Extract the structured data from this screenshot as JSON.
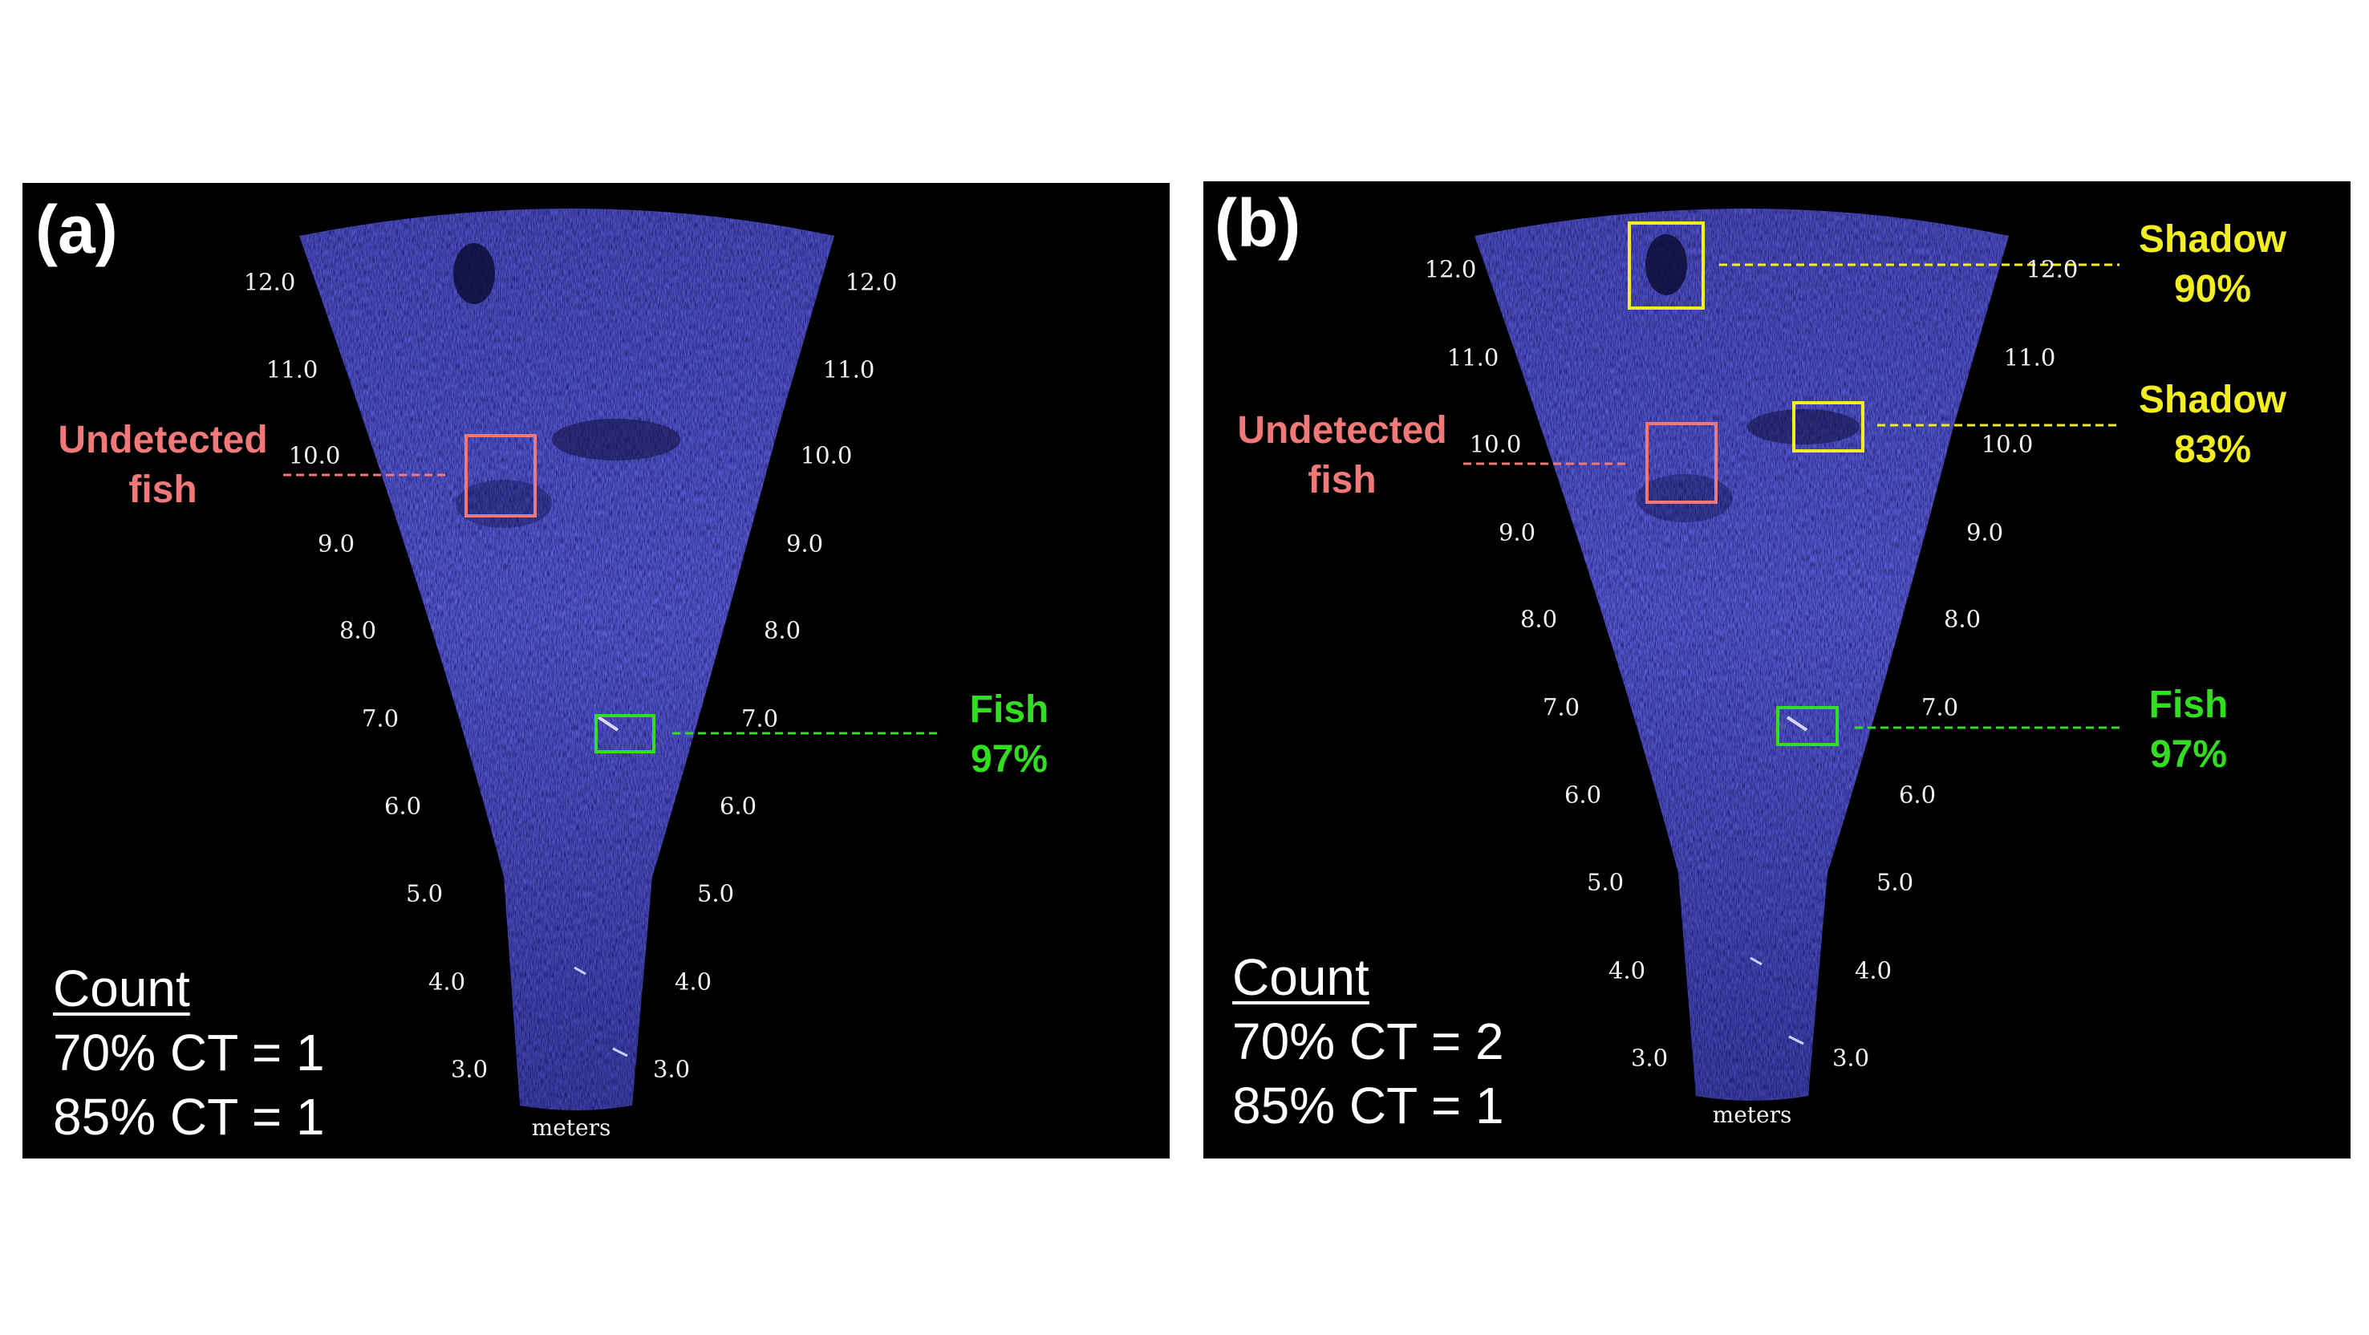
{
  "colors": {
    "sonar": "#5c5ed6",
    "undetected": "#f07878",
    "fish": "#33dd22",
    "shadow": "#f2ee22",
    "text": "#ffffff"
  },
  "panels": [
    {
      "letter": "(a)",
      "ticks": [
        "12.0",
        "11.0",
        "10.0",
        "9.0",
        "8.0",
        "7.0",
        "6.0",
        "5.0",
        "4.0",
        "3.0"
      ],
      "unit": "meters",
      "undetected": {
        "line1": "Undetected",
        "line2": "fish"
      },
      "fish": {
        "line1": "Fish",
        "line2": "97%"
      },
      "count": {
        "title": "Count",
        "row70": "70% CT = 1",
        "row85": "85% CT = 1"
      }
    },
    {
      "letter": "(b)",
      "ticks": [
        "12.0",
        "11.0",
        "10.0",
        "9.0",
        "8.0",
        "7.0",
        "6.0",
        "5.0",
        "4.0",
        "3.0"
      ],
      "unit": "meters",
      "undetected": {
        "line1": "Undetected",
        "line2": "fish"
      },
      "fish": {
        "line1": "Fish",
        "line2": "97%"
      },
      "shadow1": {
        "line1": "Shadow",
        "line2": "90%"
      },
      "shadow2": {
        "line1": "Shadow",
        "line2": "83%"
      },
      "count": {
        "title": "Count",
        "row70": "70% CT = 2",
        "row85": "85% CT = 1"
      }
    }
  ]
}
